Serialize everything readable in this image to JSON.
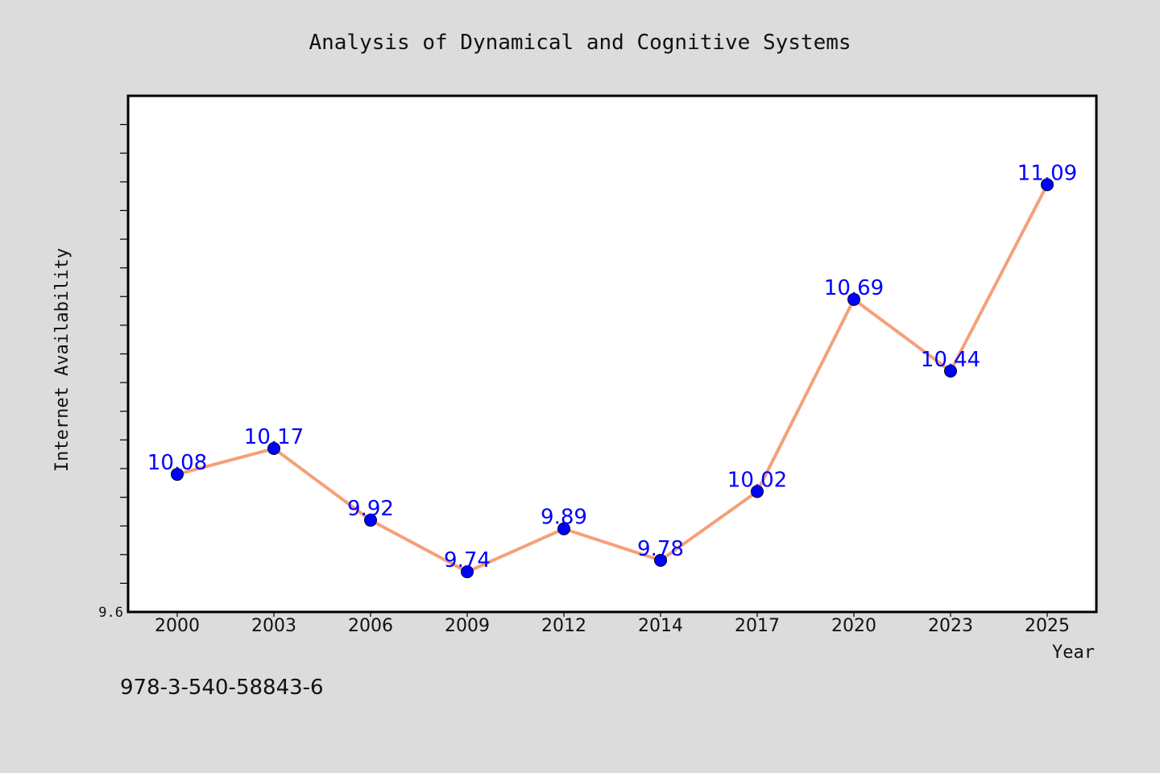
{
  "chart_data": {
    "type": "line",
    "title": "Analysis of Dynamical and Cognitive Systems",
    "xlabel": "Year",
    "ylabel": "Internet Availability",
    "categories": [
      "2000",
      "2003",
      "2006",
      "2009",
      "2012",
      "2014",
      "2017",
      "2020",
      "2023",
      "2025"
    ],
    "series": [
      {
        "values": [
          10.08,
          10.17,
          9.92,
          9.74,
          9.89,
          9.78,
          10.02,
          10.69,
          10.44,
          11.09
        ]
      }
    ],
    "data_labels": [
      "10.08",
      "10.17",
      "9.92",
      "9.74",
      "9.89",
      "9.78",
      "10.02",
      "10.69",
      "10.44",
      "11.09"
    ],
    "ylim": [
      9.6,
      11.4
    ],
    "y_tick_labels": [
      "9.6"
    ],
    "y_minor_tick_step": 0.1,
    "grid": false,
    "legend": "none",
    "colors": {
      "background": "#dcdcdc",
      "plot_background": "#ffffff",
      "line": "#f5a07a",
      "marker": "#0000ff",
      "data_label": "#0000ff"
    }
  },
  "footer": {
    "isbn": "978-3-540-58843-6"
  }
}
